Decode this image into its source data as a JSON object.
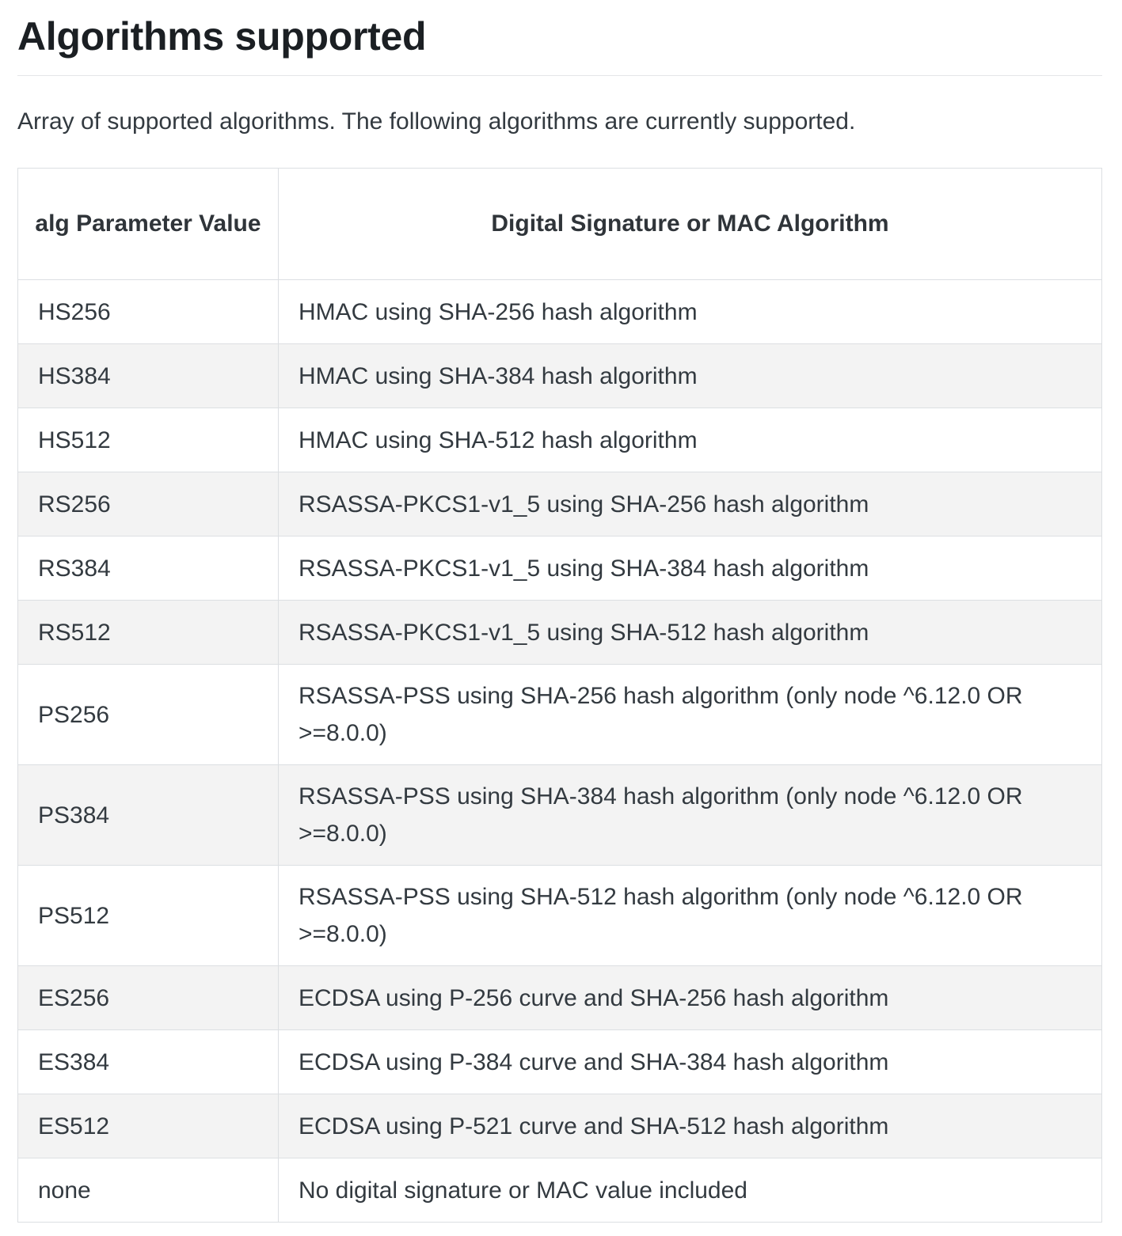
{
  "heading": "Algorithms supported",
  "intro": "Array of supported algorithms. The following algorithms are currently supported.",
  "table": {
    "headers": [
      "alg Parameter Value",
      "Digital Signature or MAC Algorithm"
    ],
    "rows": [
      {
        "alg": "HS256",
        "desc": "HMAC using SHA-256 hash algorithm"
      },
      {
        "alg": "HS384",
        "desc": "HMAC using SHA-384 hash algorithm"
      },
      {
        "alg": "HS512",
        "desc": "HMAC using SHA-512 hash algorithm"
      },
      {
        "alg": "RS256",
        "desc": "RSASSA-PKCS1-v1_5 using SHA-256 hash algorithm"
      },
      {
        "alg": "RS384",
        "desc": "RSASSA-PKCS1-v1_5 using SHA-384 hash algorithm"
      },
      {
        "alg": "RS512",
        "desc": "RSASSA-PKCS1-v1_5 using SHA-512 hash algorithm"
      },
      {
        "alg": "PS256",
        "desc": "RSASSA-PSS using SHA-256 hash algorithm (only node ^6.12.0 OR >=8.0.0)"
      },
      {
        "alg": "PS384",
        "desc": "RSASSA-PSS using SHA-384 hash algorithm (only node ^6.12.0 OR >=8.0.0)"
      },
      {
        "alg": "PS512",
        "desc": "RSASSA-PSS using SHA-512 hash algorithm (only node ^6.12.0 OR >=8.0.0)"
      },
      {
        "alg": "ES256",
        "desc": "ECDSA using P-256 curve and SHA-256 hash algorithm"
      },
      {
        "alg": "ES384",
        "desc": "ECDSA using P-384 curve and SHA-384 hash algorithm"
      },
      {
        "alg": "ES512",
        "desc": "ECDSA using P-521 curve and SHA-512 hash algorithm"
      },
      {
        "alg": "none",
        "desc": "No digital signature or MAC value included"
      }
    ]
  }
}
